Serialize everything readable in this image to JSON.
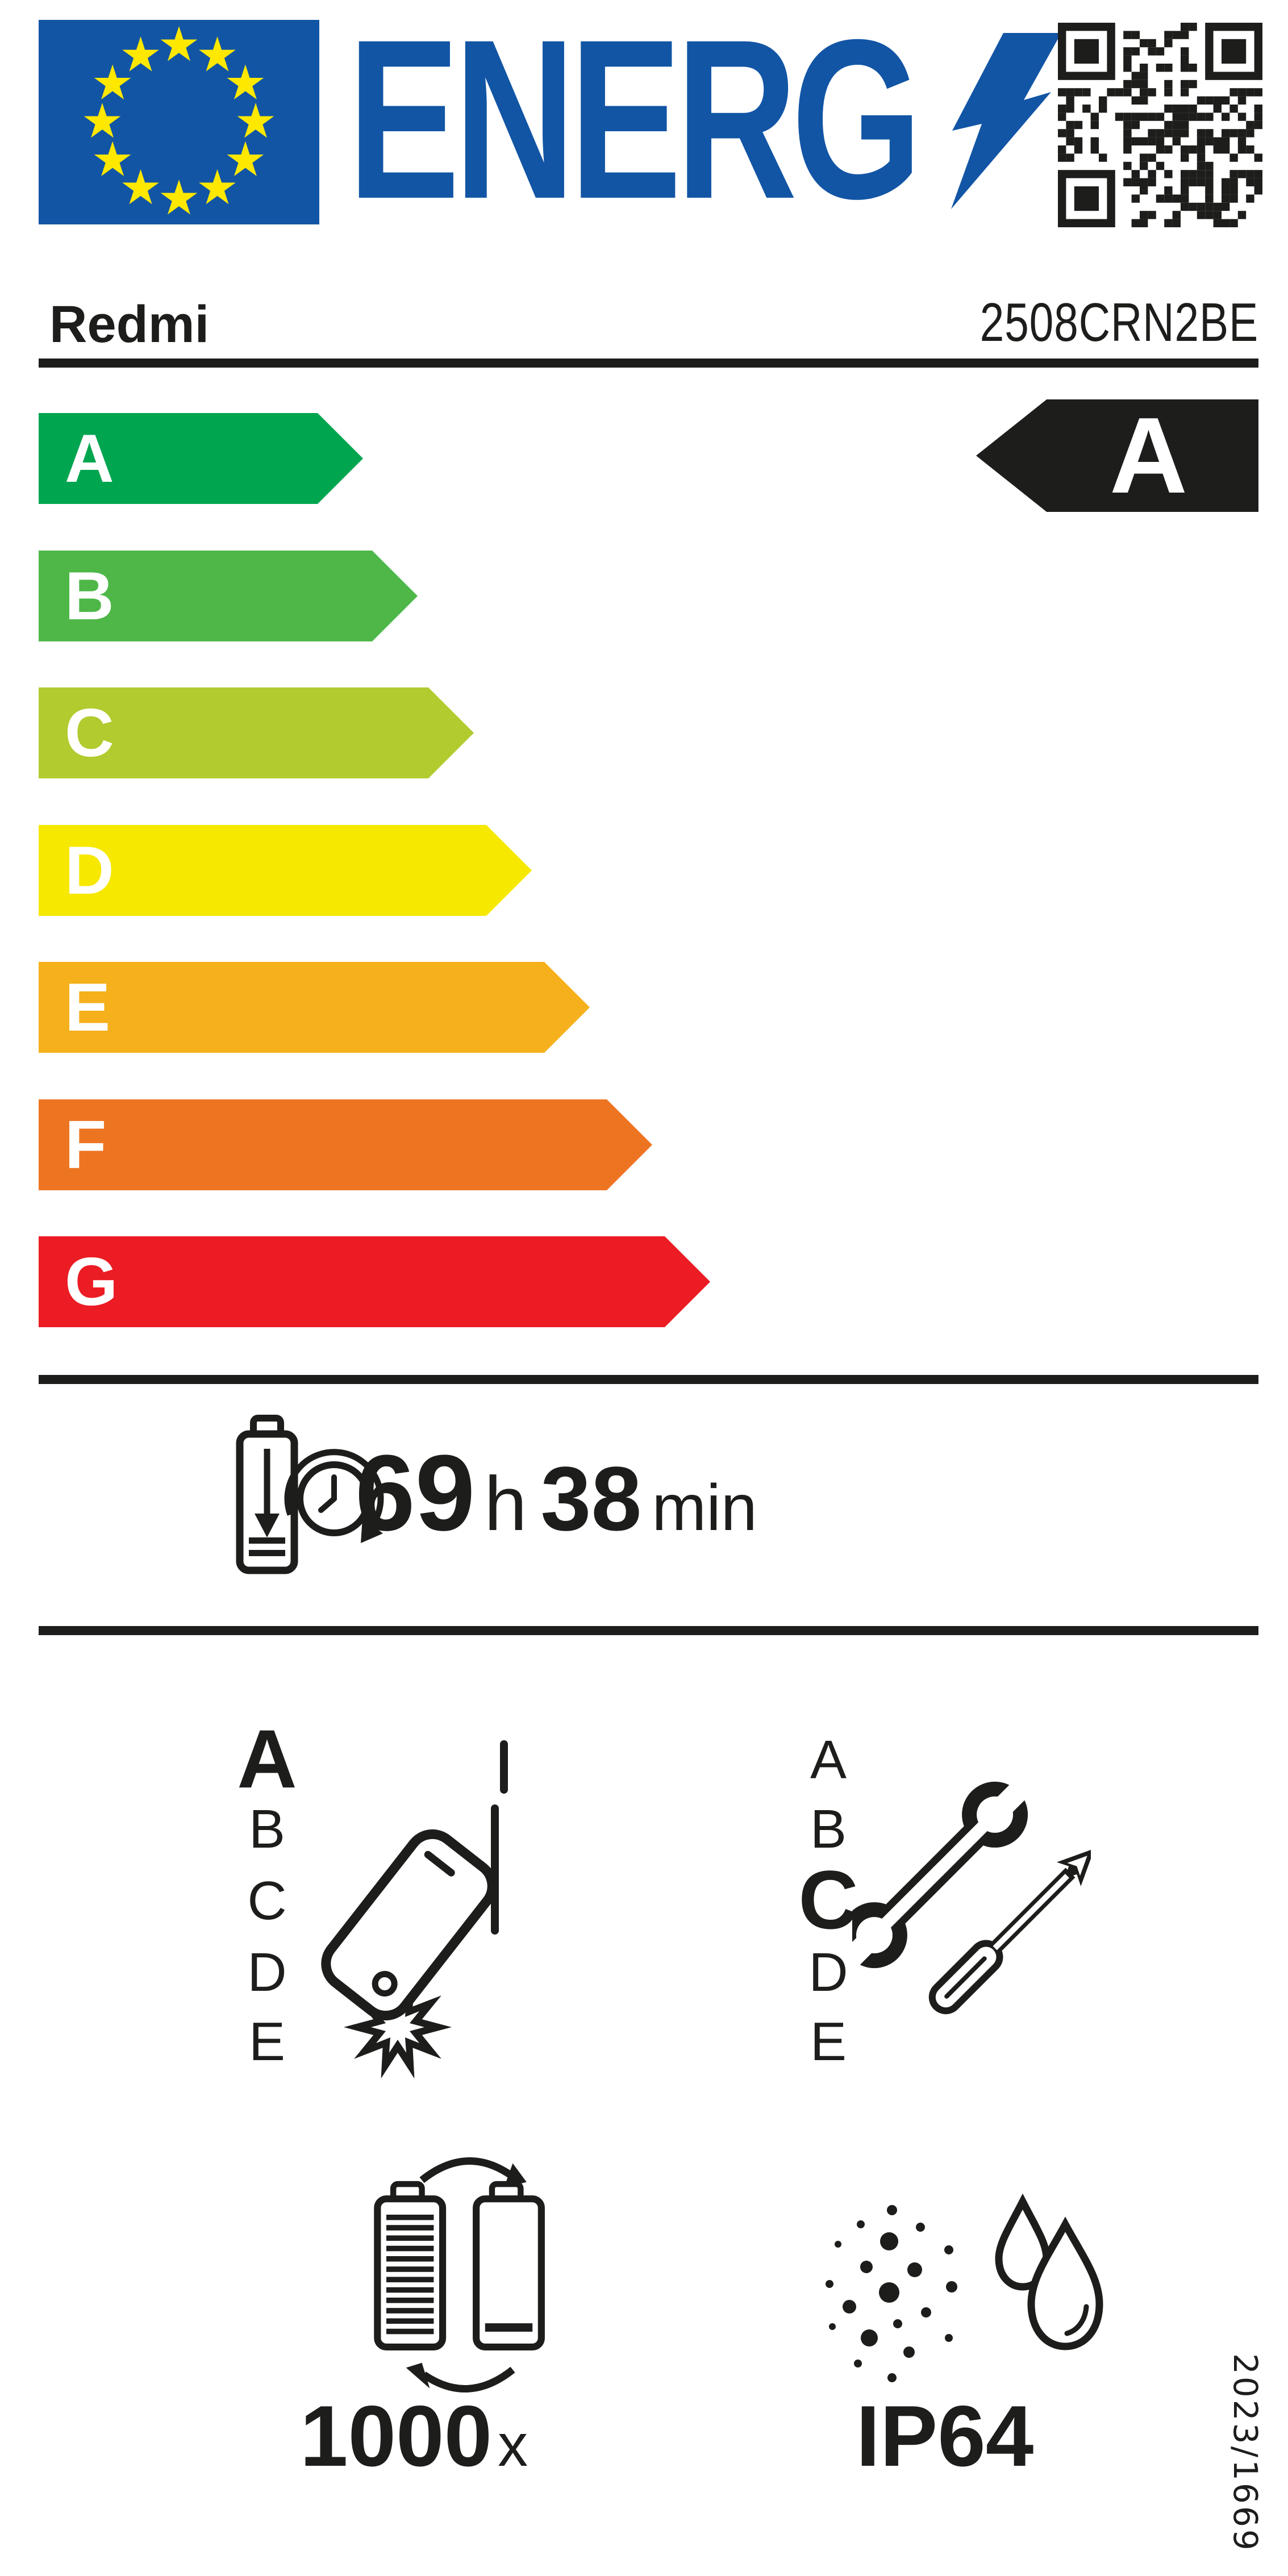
{
  "label": {
    "logo_text": "ENERG",
    "supplier": "Redmi",
    "model": "2508CRN2BE"
  },
  "energy_scale": {
    "grades": [
      {
        "letter": "A",
        "color": "#00a550"
      },
      {
        "letter": "B",
        "color": "#4eb748"
      },
      {
        "letter": "C",
        "color": "#b2cb2f"
      },
      {
        "letter": "D",
        "color": "#f7e800"
      },
      {
        "letter": "E",
        "color": "#f5b01b"
      },
      {
        "letter": "F",
        "color": "#ed7522"
      },
      {
        "letter": "G",
        "color": "#eb1c23"
      }
    ],
    "rating": "A"
  },
  "battery_endurance": {
    "hours": "69",
    "hours_unit": "h",
    "minutes": "38",
    "minutes_unit": "min"
  },
  "free_fall_reliability": {
    "classes": [
      "A",
      "B",
      "C",
      "D",
      "E"
    ],
    "rating": "A"
  },
  "repairability": {
    "classes": [
      "A",
      "B",
      "C",
      "D",
      "E"
    ],
    "rating": "C"
  },
  "battery_cycles": {
    "value": "1000",
    "unit": "x"
  },
  "ingress_protection": {
    "rating": "IP64"
  },
  "regulation_number": "2023/1669",
  "colors": {
    "brand_blue": "#1255a5",
    "star_yellow": "#ffe800",
    "ink": "#1d1d1b"
  }
}
